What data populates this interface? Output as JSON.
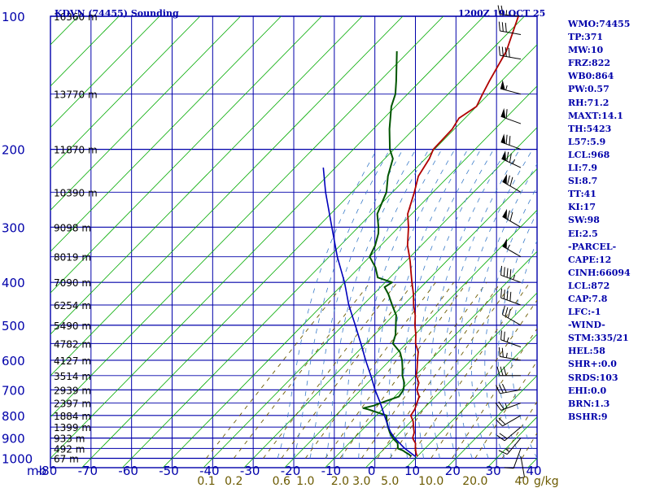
{
  "header": {
    "title": "KDVN (74455) Sounding",
    "time": "1200Z 19 OCT 25"
  },
  "indices": [
    "WMO:74455",
    "TP:371",
    "MW:10",
    "FRZ:822",
    "WB0:864",
    "PW:0.57",
    "RH:71.2",
    "MAXT:14.1",
    "TH:5423",
    "L57:5.9",
    "LCL:968",
    "LI:7.9",
    "SI:8.7",
    "TT:41",
    "KI:17",
    "SW:98",
    "EI:2.5",
    "-PARCEL-",
    "CAPE:12",
    "CINH:66094",
    "LCL:872",
    "CAP:7.8",
    "LFC:-1",
    "-WIND-",
    "STM:335/21",
    "HEL:58",
    "SHR+:0.0",
    "SRDS:103",
    "EHI:0.0",
    "BRN:1.3",
    "BSHR:9"
  ],
  "colors": {
    "grid": "#0000aa",
    "isotherm": "#00aa00",
    "mixing_ratio": "#6b5a00",
    "moist_adiabat": "#3b7cc9",
    "temperature": "#b00000",
    "dewpoint": "#005500",
    "parcel": "#0000bb",
    "wind": "#000000"
  },
  "chart_data": {
    "type": "line",
    "title": "KDVN (74455) Sounding",
    "subtitle": "1200Z 19 OCT 25",
    "xlabel": "mb",
    "xunit_label": "g/kg",
    "xlim": [
      -80,
      40
    ],
    "ylim": [
      1000,
      100
    ],
    "temperature_ticks": [
      "-80",
      "-70",
      "-60",
      "-50",
      "-40",
      "-30",
      "-20",
      "-10",
      "0",
      "10",
      "20",
      "30",
      "40"
    ],
    "pressure_ticks": [
      "100",
      "200",
      "300",
      "400",
      "500",
      "600",
      "700",
      "800",
      "900",
      "1000"
    ],
    "pressure_levels": [
      1000,
      950,
      900,
      850,
      800,
      750,
      700,
      650,
      600,
      550,
      500,
      450,
      400,
      350,
      300,
      250,
      200,
      150,
      100
    ],
    "heights": [
      {
        "p": 1000,
        "label": "67 m"
      },
      {
        "p": 950,
        "label": "492 m"
      },
      {
        "p": 900,
        "label": "933 m"
      },
      {
        "p": 850,
        "label": "1399 m"
      },
      {
        "p": 800,
        "label": "1884 m"
      },
      {
        "p": 750,
        "label": "2397 m"
      },
      {
        "p": 700,
        "label": "2939 m"
      },
      {
        "p": 650,
        "label": "3514 m"
      },
      {
        "p": 600,
        "label": "4127 m"
      },
      {
        "p": 550,
        "label": "4782 m"
      },
      {
        "p": 500,
        "label": "5490 m"
      },
      {
        "p": 450,
        "label": "6254 m"
      },
      {
        "p": 400,
        "label": "7090 m"
      },
      {
        "p": 350,
        "label": "8019 m"
      },
      {
        "p": 300,
        "label": "9098 m"
      },
      {
        "p": 250,
        "label": "10390 m"
      },
      {
        "p": 200,
        "label": "11870 m"
      },
      {
        "p": 150,
        "label": "13770 m"
      },
      {
        "p": 100,
        "label": "16360 m"
      }
    ],
    "mixing_ratio_labels": [
      {
        "w": 0.1,
        "label": "0.1"
      },
      {
        "w": 0.2,
        "label": "0.2"
      },
      {
        "w": 0.6,
        "label": "0.6"
      },
      {
        "w": 1.0,
        "label": "1.0"
      },
      {
        "w": 2.0,
        "label": "2.0"
      },
      {
        "w": 3.0,
        "label": "3.0"
      },
      {
        "w": 5.0,
        "label": "5.0"
      },
      {
        "w": 10.0,
        "label": "10.0"
      },
      {
        "w": 20.0,
        "label": "20.0"
      },
      {
        "w": 40.0,
        "label": "40"
      }
    ],
    "series": [
      {
        "name": "Temperature",
        "points": [
          [
            990,
            10.0
          ],
          [
            975,
            9.0
          ],
          [
            950,
            7.6
          ],
          [
            925,
            6.4
          ],
          [
            900,
            4.4
          ],
          [
            875,
            3.5
          ],
          [
            850,
            2.0
          ],
          [
            825,
            0.5
          ],
          [
            800,
            -1.5
          ],
          [
            775,
            -2.0
          ],
          [
            750,
            -3.0
          ],
          [
            725,
            -4.0
          ],
          [
            700,
            -6.2
          ],
          [
            675,
            -7.4
          ],
          [
            650,
            -9.8
          ],
          [
            625,
            -11.4
          ],
          [
            600,
            -13.2
          ],
          [
            575,
            -15.0
          ],
          [
            550,
            -17.7
          ],
          [
            525,
            -19.8
          ],
          [
            500,
            -22.3
          ],
          [
            475,
            -24.6
          ],
          [
            450,
            -27.5
          ],
          [
            425,
            -30.2
          ],
          [
            400,
            -33.4
          ],
          [
            380,
            -36.0
          ],
          [
            360,
            -38.7
          ],
          [
            350,
            -40.2
          ],
          [
            330,
            -43.4
          ],
          [
            300,
            -47.6
          ],
          [
            280,
            -51.0
          ],
          [
            250,
            -54.6
          ],
          [
            230,
            -57.5
          ],
          [
            210,
            -59.0
          ],
          [
            200,
            -60.3
          ],
          [
            180,
            -60.5
          ],
          [
            170,
            -61.5
          ],
          [
            160,
            -60.0
          ],
          [
            150,
            -61.5
          ],
          [
            140,
            -63.0
          ],
          [
            120,
            -66.0
          ],
          [
            100,
            -71.5
          ]
        ]
      },
      {
        "name": "Dewpoint",
        "points": [
          [
            990,
            8.5
          ],
          [
            980,
            7.5
          ],
          [
            970,
            6.2
          ],
          [
            960,
            5.0
          ],
          [
            950,
            3.3
          ],
          [
            925,
            2.0
          ],
          [
            900,
            -0.5
          ],
          [
            875,
            -2.5
          ],
          [
            850,
            -4.3
          ],
          [
            825,
            -6.0
          ],
          [
            800,
            -7.5
          ],
          [
            775,
            -13.5
          ],
          [
            770,
            -15.0
          ],
          [
            760,
            -13.0
          ],
          [
            750,
            -12.0
          ],
          [
            725,
            -9.0
          ],
          [
            700,
            -9.5
          ],
          [
            675,
            -11.0
          ],
          [
            650,
            -13.2
          ],
          [
            625,
            -15.0
          ],
          [
            600,
            -17.0
          ],
          [
            575,
            -19.5
          ],
          [
            550,
            -23.3
          ],
          [
            525,
            -24.8
          ],
          [
            500,
            -27.0
          ],
          [
            475,
            -29.3
          ],
          [
            450,
            -32.8
          ],
          [
            425,
            -36.4
          ],
          [
            410,
            -39.0
          ],
          [
            400,
            -38.3
          ],
          [
            390,
            -43.0
          ],
          [
            370,
            -46.0
          ],
          [
            350,
            -50.0
          ],
          [
            330,
            -51.4
          ],
          [
            310,
            -53.5
          ],
          [
            300,
            -55.0
          ],
          [
            280,
            -58.5
          ],
          [
            250,
            -61.5
          ],
          [
            230,
            -65.0
          ],
          [
            210,
            -68.0
          ],
          [
            200,
            -71.0
          ],
          [
            180,
            -76.0
          ],
          [
            160,
            -81.0
          ],
          [
            150,
            -83.0
          ],
          [
            140,
            -86.0
          ],
          [
            120,
            -93.0
          ]
        ]
      },
      {
        "name": "Parcel",
        "points": [
          [
            990,
            9.5
          ],
          [
            950,
            5.0
          ],
          [
            900,
            0.0
          ],
          [
            872,
            -2.5
          ],
          [
            850,
            -4.2
          ],
          [
            800,
            -8.0
          ],
          [
            750,
            -12.0
          ],
          [
            700,
            -16.5
          ],
          [
            650,
            -21.0
          ],
          [
            600,
            -26.0
          ],
          [
            550,
            -31.2
          ],
          [
            500,
            -37.0
          ],
          [
            450,
            -43.5
          ],
          [
            400,
            -50.0
          ],
          [
            350,
            -58.0
          ],
          [
            300,
            -66.5
          ],
          [
            250,
            -76.5
          ],
          [
            220,
            -83.0
          ]
        ]
      }
    ],
    "wind_barbs": [
      {
        "p": 990,
        "dir": 170,
        "kt": 5
      },
      {
        "p": 950,
        "dir": 200,
        "kt": 10
      },
      {
        "p": 900,
        "dir": 220,
        "kt": 15
      },
      {
        "p": 850,
        "dir": 230,
        "kt": 20
      },
      {
        "p": 800,
        "dir": 240,
        "kt": 20
      },
      {
        "p": 750,
        "dir": 250,
        "kt": 25
      },
      {
        "p": 700,
        "dir": 260,
        "kt": 30
      },
      {
        "p": 650,
        "dir": 270,
        "kt": 30
      },
      {
        "p": 600,
        "dir": 280,
        "kt": 25
      },
      {
        "p": 560,
        "dir": 290,
        "kt": 25
      },
      {
        "p": 500,
        "dir": 300,
        "kt": 30
      },
      {
        "p": 450,
        "dir": 290,
        "kt": 40
      },
      {
        "p": 400,
        "dir": 290,
        "kt": 45
      },
      {
        "p": 350,
        "dir": 300,
        "kt": 55
      },
      {
        "p": 300,
        "dir": 300,
        "kt": 70
      },
      {
        "p": 250,
        "dir": 300,
        "kt": 70
      },
      {
        "p": 220,
        "dir": 295,
        "kt": 75
      },
      {
        "p": 200,
        "dir": 290,
        "kt": 70
      },
      {
        "p": 175,
        "dir": 290,
        "kt": 60
      },
      {
        "p": 150,
        "dir": 285,
        "kt": 55
      },
      {
        "p": 125,
        "dir": 280,
        "kt": 40
      },
      {
        "p": 110,
        "dir": 280,
        "kt": 30
      },
      {
        "p": 100,
        "dir": 275,
        "kt": 25
      }
    ]
  }
}
